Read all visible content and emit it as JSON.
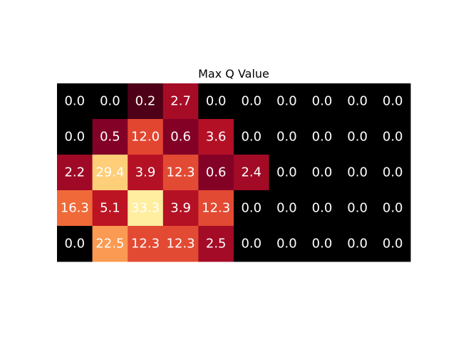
{
  "chart_data": {
    "type": "heatmap",
    "title": "Max Q Value",
    "rows": 5,
    "cols": 10,
    "values": [
      [
        0.0,
        0.0,
        0.2,
        2.7,
        0.0,
        0.0,
        0.0,
        0.0,
        0.0,
        0.0
      ],
      [
        0.0,
        0.5,
        12.0,
        0.6,
        3.6,
        0.0,
        0.0,
        0.0,
        0.0,
        0.0
      ],
      [
        2.2,
        29.4,
        3.9,
        12.3,
        0.6,
        2.4,
        0.0,
        0.0,
        0.0,
        0.0
      ],
      [
        16.3,
        5.1,
        33.3,
        3.9,
        12.3,
        0.0,
        0.0,
        0.0,
        0.0,
        0.0
      ],
      [
        0.0,
        22.5,
        12.3,
        12.3,
        2.5,
        0.0,
        0.0,
        0.0,
        0.0,
        0.0
      ]
    ],
    "colormap": "hot-like (black → dark red → orange → pale yellow)",
    "annotations": "values printed in each cell with one decimal",
    "annotation_color": "#ffffff",
    "grid": false,
    "axes_visible": false
  }
}
